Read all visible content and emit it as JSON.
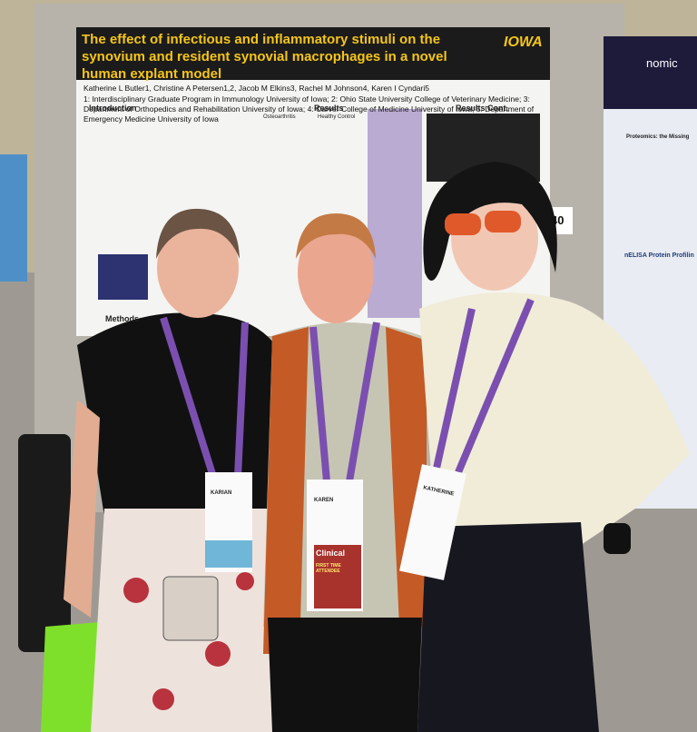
{
  "poster": {
    "title": "The effect of infectious and inflammatory stimuli on the synovium and resident synovial macrophages in a novel human explant model",
    "logo": "IOWA",
    "authors": "Katherine L Butler1, Christine A Petersen1,2, Jacob M Elkins3, Rachel M Johnson4, Karen I Cyndari5",
    "affiliations": "1: Interdisciplinary Graduate Program in Immunology University of Iowa; 2: Ohio State University College of Veterinary Medicine; 3: Department of Orthopedics and Rehabilitation University of Iowa; 4: Carver College of Medicine University of Iowa; 5: Department of Emergency Medicine University of Iowa",
    "sections": [
      "Introduction",
      "Results",
      "Results Cont.",
      "Methods"
    ],
    "panel_labels": [
      "Osteoarthritis",
      "Healthy Control"
    ]
  },
  "booth_number": "40",
  "side_poster": {
    "brand": "nomic",
    "heading": "Proteomics: the Missing",
    "subheading": "nELISA Protein Profilin"
  },
  "badges": [
    {
      "name": "KARIAN"
    },
    {
      "name": "KAREN",
      "track": "Clinical",
      "ribbon": "FIRST TIME ATTENDEE"
    },
    {
      "name": "KATHERINE"
    }
  ]
}
